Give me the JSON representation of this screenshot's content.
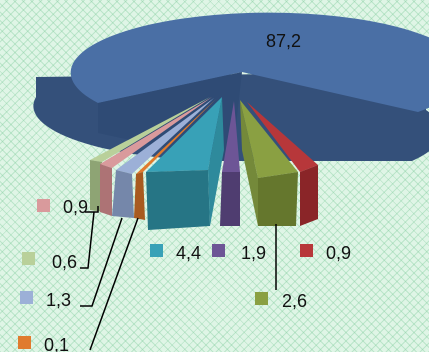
{
  "chart_data": {
    "type": "pie",
    "slices": [
      {
        "label": "87,2",
        "value": 87.2,
        "color": "#4a6fa5",
        "side": "#34507a"
      },
      {
        "label": "0,9",
        "value": 0.9,
        "color": "#b7373a",
        "side": "#8a2528"
      },
      {
        "label": "2,6",
        "value": 2.6,
        "color": "#8aa042",
        "side": "#65772d"
      },
      {
        "label": "1,9",
        "value": 1.9,
        "color": "#6d5596",
        "side": "#4f3d70"
      },
      {
        "label": "4,4",
        "value": 4.4,
        "color": "#38a1b7",
        "side": "#267585"
      },
      {
        "label": "0,1",
        "value": 0.1,
        "color": "#e07b2e",
        "side": "#a85a1f"
      },
      {
        "label": "1,3",
        "value": 1.3,
        "color": "#9cb0d7",
        "side": "#7587aa"
      },
      {
        "label": "0,6",
        "value": 0.6,
        "color": "#b9d09a",
        "side": "#8ea474"
      },
      {
        "label": "0,9",
        "value": 0.9,
        "color": "#d99a9c",
        "side": "#ad7375"
      }
    ]
  }
}
